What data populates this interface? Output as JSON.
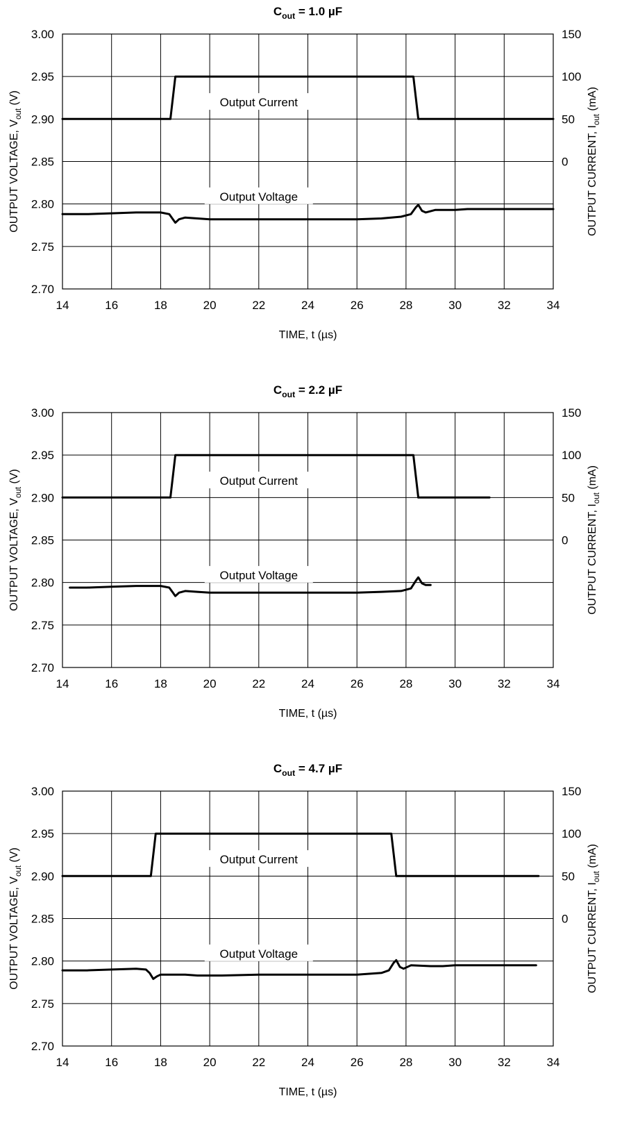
{
  "chart_data": [
    {
      "type": "line",
      "title_main": "C",
      "title_sub": "out",
      "title_rest": " = 1.0 µF",
      "xlabel": "TIME, t (µs)",
      "ylabel_left_main": "OUTPUT VOLTAGE, V",
      "ylabel_left_sub": "out",
      "ylabel_left_rest": " (V)",
      "ylabel_right_main": "OUTPUT CURRENT, I",
      "ylabel_right_sub": "out",
      "ylabel_right_rest": " (mA)",
      "xlim": [
        14,
        34
      ],
      "ylim_left": [
        2.7,
        3.0
      ],
      "x_ticks": [
        "14",
        "16",
        "18",
        "20",
        "22",
        "24",
        "26",
        "28",
        "30",
        "32",
        "34"
      ],
      "y_left_ticks": [
        "2.70",
        "2.75",
        "2.80",
        "2.85",
        "2.90",
        "2.95",
        "3.00"
      ],
      "y_right_ticks": [
        "0",
        "50",
        "100",
        "150"
      ],
      "grid": true,
      "annotations": {
        "current": "Output Current",
        "voltage": "Output Voltage"
      },
      "series": [
        {
          "name": "Output Current",
          "axis": "right",
          "x": [
            14.0,
            18.4,
            18.6,
            28.3,
            28.5,
            34.0
          ],
          "y": [
            50,
            50,
            100,
            100,
            50,
            50
          ]
        },
        {
          "name": "Output Voltage",
          "axis": "left",
          "x": [
            14.0,
            15.0,
            16.0,
            17.0,
            18.0,
            18.35,
            18.5,
            18.6,
            18.75,
            19.0,
            19.5,
            20.0,
            20.5,
            22.0,
            24.0,
            26.0,
            27.0,
            27.8,
            28.2,
            28.4,
            28.5,
            28.65,
            28.8,
            29.2,
            30.0,
            30.5,
            32.0,
            34.0
          ],
          "y": [
            2.788,
            2.788,
            2.789,
            2.79,
            2.79,
            2.788,
            2.782,
            2.778,
            2.782,
            2.784,
            2.783,
            2.782,
            2.782,
            2.782,
            2.782,
            2.782,
            2.783,
            2.785,
            2.788,
            2.796,
            2.799,
            2.792,
            2.79,
            2.793,
            2.793,
            2.794,
            2.794,
            2.794
          ]
        }
      ]
    },
    {
      "type": "line",
      "title_main": "C",
      "title_sub": "out",
      "title_rest": " = 2.2 µF",
      "xlabel": "TIME, t (µs)",
      "ylabel_left_main": "OUTPUT VOLTAGE, V",
      "ylabel_left_sub": "out",
      "ylabel_left_rest": " (V)",
      "ylabel_right_main": "OUTPUT CURRENT, I",
      "ylabel_right_sub": "out",
      "ylabel_right_rest": " (mA)",
      "xlim": [
        14,
        34
      ],
      "ylim_left": [
        2.7,
        3.0
      ],
      "x_ticks": [
        "14",
        "16",
        "18",
        "20",
        "22",
        "24",
        "26",
        "28",
        "30",
        "32",
        "34"
      ],
      "y_left_ticks": [
        "2.70",
        "2.75",
        "2.80",
        "2.85",
        "2.90",
        "2.95",
        "3.00"
      ],
      "y_right_ticks": [
        "0",
        "50",
        "100",
        "150"
      ],
      "grid": true,
      "annotations": {
        "current": "Output Current",
        "voltage": "Output Voltage"
      },
      "series": [
        {
          "name": "Output Current",
          "axis": "right",
          "x": [
            14.0,
            18.4,
            18.6,
            28.3,
            28.5,
            31.4
          ],
          "y": [
            50,
            50,
            100,
            100,
            50,
            50
          ]
        },
        {
          "name": "Output Voltage",
          "axis": "left",
          "x": [
            14.3,
            15.0,
            16.0,
            17.0,
            18.0,
            18.35,
            18.5,
            18.6,
            18.75,
            19.0,
            19.5,
            20.0,
            20.5,
            22.0,
            24.0,
            26.0,
            27.0,
            27.8,
            28.2,
            28.4,
            28.5,
            28.65,
            28.8,
            29.0
          ],
          "y": [
            2.794,
            2.794,
            2.795,
            2.796,
            2.796,
            2.794,
            2.788,
            2.784,
            2.788,
            2.79,
            2.789,
            2.788,
            2.788,
            2.788,
            2.788,
            2.788,
            2.789,
            2.79,
            2.793,
            2.802,
            2.806,
            2.799,
            2.797,
            2.797
          ]
        }
      ]
    },
    {
      "type": "line",
      "title_main": "C",
      "title_sub": "out",
      "title_rest": " = 4.7 µF",
      "xlabel": "TIME, t (µs)",
      "ylabel_left_main": "OUTPUT VOLTAGE, V",
      "ylabel_left_sub": "out",
      "ylabel_left_rest": " (V)",
      "ylabel_right_main": "OUTPUT CURRENT, I",
      "ylabel_right_sub": "out",
      "ylabel_right_rest": " (mA)",
      "xlim": [
        14,
        34
      ],
      "ylim_left": [
        2.7,
        3.0
      ],
      "x_ticks": [
        "14",
        "16",
        "18",
        "20",
        "22",
        "24",
        "26",
        "28",
        "30",
        "32",
        "34"
      ],
      "y_left_ticks": [
        "2.70",
        "2.75",
        "2.80",
        "2.85",
        "2.90",
        "2.95",
        "3.00"
      ],
      "y_right_ticks": [
        "0",
        "50",
        "100",
        "150"
      ],
      "grid": true,
      "annotations": {
        "current": "Output Current",
        "voltage": "Output Voltage"
      },
      "series": [
        {
          "name": "Output Current",
          "axis": "right",
          "x": [
            14.0,
            17.6,
            17.8,
            27.4,
            27.6,
            33.4
          ],
          "y": [
            50,
            50,
            100,
            100,
            50,
            50
          ]
        },
        {
          "name": "Output Voltage",
          "axis": "left",
          "x": [
            14.0,
            15.0,
            16.0,
            17.0,
            17.4,
            17.55,
            17.7,
            17.85,
            18.0,
            18.5,
            19.0,
            19.5,
            20.0,
            20.5,
            22.0,
            24.0,
            26.0,
            27.0,
            27.3,
            27.5,
            27.6,
            27.75,
            27.9,
            28.2,
            29.0,
            29.5,
            30.0,
            31.0,
            33.3
          ],
          "y": [
            2.789,
            2.789,
            2.79,
            2.791,
            2.79,
            2.786,
            2.779,
            2.782,
            2.784,
            2.784,
            2.784,
            2.783,
            2.783,
            2.783,
            2.784,
            2.784,
            2.784,
            2.786,
            2.789,
            2.798,
            2.801,
            2.793,
            2.791,
            2.795,
            2.794,
            2.794,
            2.795,
            2.795,
            2.795
          ]
        }
      ]
    }
  ]
}
